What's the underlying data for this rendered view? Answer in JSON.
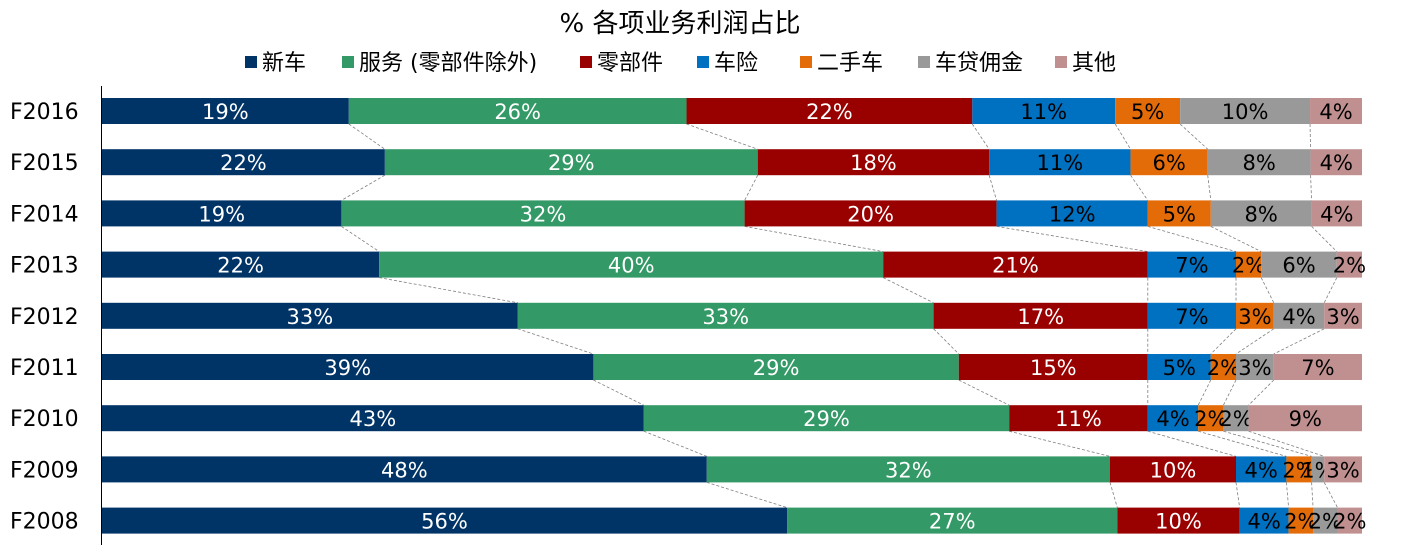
{
  "chart_data": {
    "type": "bar",
    "orientation": "horizontal",
    "stacked": true,
    "title": "% 各项业务利润占比",
    "xlabel": "",
    "ylabel": "",
    "categories": [
      "F2016",
      "F2015",
      "F2014",
      "F2013",
      "F2012",
      "F2011",
      "F2010",
      "F2009",
      "F2008"
    ],
    "legend_position": "top",
    "series": [
      {
        "name": "新车",
        "color": "#003366",
        "label_color": "#ffffff",
        "values": [
          19,
          22,
          19,
          22,
          33,
          39,
          43,
          48,
          56
        ]
      },
      {
        "name": "服务 (零部件除外)",
        "color": "#339966",
        "label_color": "#ffffff",
        "values": [
          26,
          29,
          32,
          40,
          33,
          29,
          29,
          32,
          27
        ]
      },
      {
        "name": "零部件",
        "color": "#990000",
        "label_color": "#ffffff",
        "values": [
          22,
          18,
          20,
          21,
          17,
          15,
          11,
          10,
          10
        ]
      },
      {
        "name": "车险",
        "color": "#0070c0",
        "label_color": "#000000",
        "values": [
          11,
          11,
          12,
          7,
          7,
          5,
          4,
          4,
          4
        ]
      },
      {
        "name": "二手车",
        "color": "#e36c09",
        "label_color": "#000000",
        "values": [
          5,
          6,
          5,
          2,
          3,
          2,
          2,
          2,
          2
        ]
      },
      {
        "name": "车贷佣金",
        "color": "#999999",
        "label_color": "#000000",
        "values": [
          10,
          8,
          8,
          6,
          4,
          3,
          2,
          1,
          2
        ]
      },
      {
        "name": "其他",
        "color": "#c09090",
        "label_color": "#000000",
        "values": [
          4,
          4,
          4,
          2,
          3,
          7,
          9,
          3,
          2
        ]
      }
    ],
    "value_suffix": "%",
    "connector_lines": true,
    "grid": false
  }
}
